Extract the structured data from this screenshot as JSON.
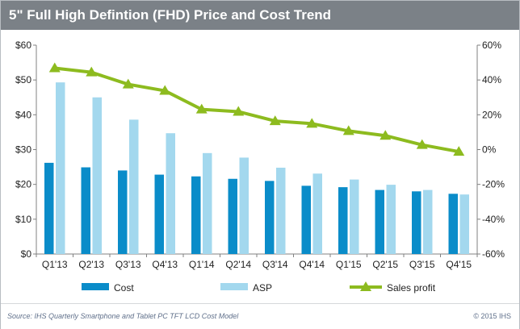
{
  "chart_data": {
    "type": "bar",
    "title": "5\" Full High Defintion (FHD) Price and Cost Trend",
    "categories": [
      "Q1'13",
      "Q2'13",
      "Q3'13",
      "Q4'13",
      "Q1'14",
      "Q2'14",
      "Q3'14",
      "Q4'14",
      "Q1'15",
      "Q2'15",
      "Q3'15",
      "Q4'15"
    ],
    "series": [
      {
        "name": "Cost",
        "type": "bar",
        "axis": "left",
        "color": "#0a8cc9",
        "values": [
          26.2,
          24.9,
          24.0,
          22.8,
          22.3,
          21.6,
          21.0,
          19.6,
          19.2,
          18.4,
          18.0,
          17.3
        ]
      },
      {
        "name": "ASP",
        "type": "bar",
        "axis": "left",
        "color": "#a3d8ee",
        "values": [
          49.3,
          45.0,
          38.6,
          34.7,
          29.0,
          27.7,
          24.8,
          23.1,
          21.4,
          19.9,
          18.4,
          17.1
        ]
      },
      {
        "name": "Sales profit",
        "type": "line",
        "axis": "right",
        "color": "#8dbb1f",
        "values": [
          46.8,
          44.4,
          37.5,
          33.8,
          23.1,
          21.8,
          16.4,
          14.9,
          10.7,
          8.0,
          2.7,
          -1.2
        ]
      }
    ],
    "y_left": {
      "min": 0,
      "max": 60,
      "step": 10,
      "tick_labels": [
        "$0",
        "$10",
        "$20",
        "$30",
        "$40",
        "$50",
        "$60"
      ]
    },
    "y_right": {
      "min": -60,
      "max": 60,
      "step": 20,
      "tick_labels": [
        "-60%",
        "-40%",
        "-20%",
        "0%",
        "20%",
        "40%",
        "60%"
      ]
    },
    "grid": false,
    "legend_position": "bottom"
  },
  "footer": {
    "source": "Source: IHS Quarterly Smartphone  and Tablet PC TFT LCD Cost Model",
    "copyright": "© 2015 IHS"
  }
}
